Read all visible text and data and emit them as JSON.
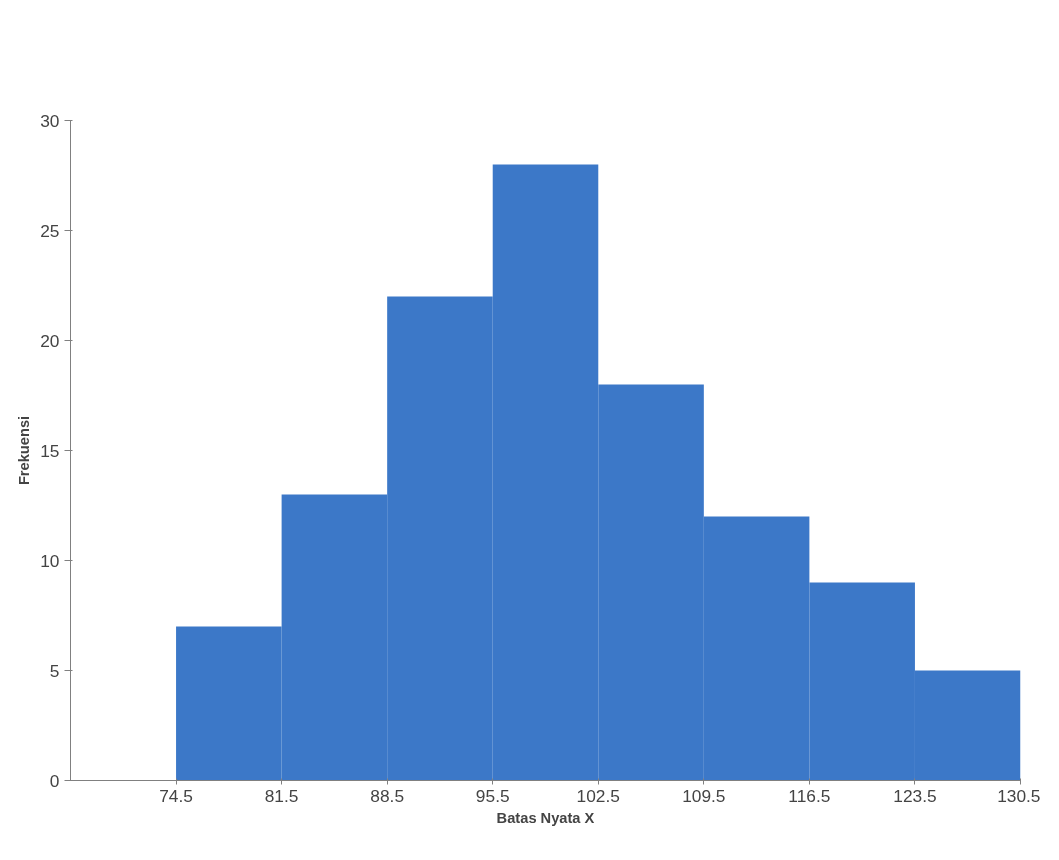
{
  "chart_data": {
    "type": "histogram",
    "xlabel": "Batas Nyata X",
    "ylabel": "Frekuensi",
    "bins": [
      74.5,
      81.5,
      88.5,
      95.5,
      102.5,
      109.5,
      116.5,
      123.5,
      130.5
    ],
    "values": [
      7,
      13,
      22,
      28,
      18,
      12,
      9,
      5
    ],
    "color": "#3c78c8",
    "xlim": [
      67.5,
      130.5
    ],
    "xticks": [
      74.5,
      81.5,
      88.5,
      95.5,
      102.5,
      109.5,
      116.5,
      123.5,
      130.5
    ],
    "ylim": [
      0,
      30
    ],
    "yticks": [
      0,
      5,
      10,
      15,
      20,
      25,
      30
    ],
    "grid": false
  }
}
